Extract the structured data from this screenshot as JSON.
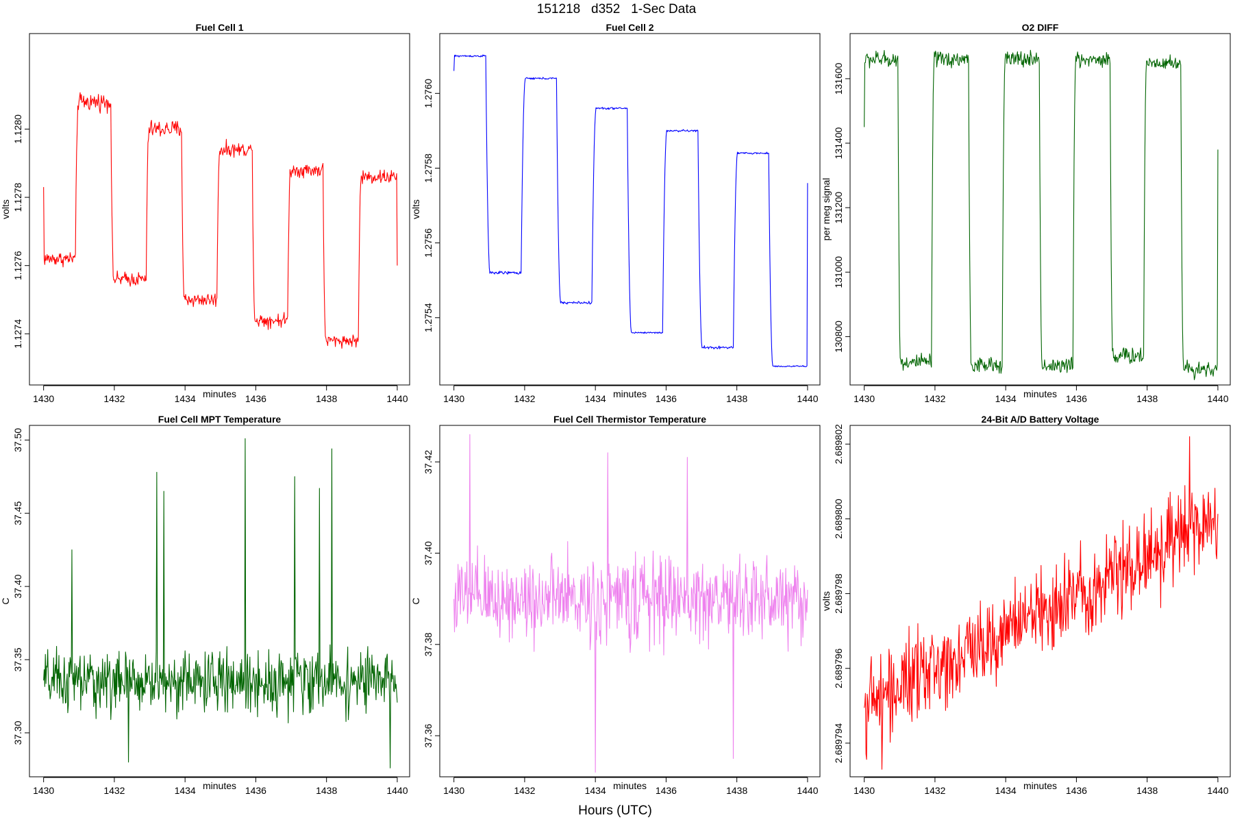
{
  "figure": {
    "title": "151218   d352   1-Sec Data",
    "footer_label": "Hours (UTC)"
  },
  "chart_data": [
    {
      "type": "line",
      "title": "Fuel Cell 1",
      "xlabel": "minutes",
      "ylabel": "volts",
      "color": "#ff0000",
      "xlim": [
        1429.6,
        1440.35
      ],
      "ylim": [
        1.12725,
        1.12828
      ],
      "xticks": [
        "1430",
        "1432",
        "1434",
        "1436",
        "1438",
        "1440"
      ],
      "yticks": [
        "1.1274",
        "1.1276",
        "1.1278",
        "1.1280"
      ],
      "pattern": "square_wave_noisy",
      "series": [
        {
          "name": "Fuel Cell 1",
          "segments": [
            {
              "x0": 1430.0,
              "x1": 1430.9,
              "level": 1.12762,
              "noise": 1.8e-05
            },
            {
              "x0": 1430.9,
              "x1": 1431.9,
              "level": 1.12808,
              "noise": 2.2e-05
            },
            {
              "x0": 1431.9,
              "x1": 1432.9,
              "level": 1.12756,
              "noise": 1.8e-05
            },
            {
              "x0": 1432.9,
              "x1": 1433.9,
              "level": 1.128,
              "noise": 2.2e-05
            },
            {
              "x0": 1433.9,
              "x1": 1434.9,
              "level": 1.1275,
              "noise": 1.8e-05
            },
            {
              "x0": 1434.9,
              "x1": 1435.9,
              "level": 1.12794,
              "noise": 1.8e-05
            },
            {
              "x0": 1435.9,
              "x1": 1436.9,
              "level": 1.12744,
              "noise": 1.8e-05
            },
            {
              "x0": 1436.9,
              "x1": 1437.9,
              "level": 1.12788,
              "noise": 1.8e-05
            },
            {
              "x0": 1437.9,
              "x1": 1438.9,
              "level": 1.12738,
              "noise": 1.5e-05
            },
            {
              "x0": 1438.9,
              "x1": 1440.0,
              "level": 1.12786,
              "noise": 1.8e-05
            }
          ],
          "start_value": 1.12783,
          "end_value": 1.1276
        }
      ]
    },
    {
      "type": "line",
      "title": "Fuel Cell 2",
      "xlabel": "minutes",
      "ylabel": "volts",
      "color": "#0000ff",
      "xlim": [
        1429.6,
        1440.35
      ],
      "ylim": [
        1.27522,
        1.27616
      ],
      "xticks": [
        "1430",
        "1432",
        "1434",
        "1436",
        "1438",
        "1440"
      ],
      "yticks": [
        "1.2754",
        "1.2756",
        "1.2758",
        "1.2760"
      ],
      "pattern": "square_wave_smooth",
      "series": [
        {
          "name": "Fuel Cell 2",
          "segments": [
            {
              "x0": 1430.0,
              "x1": 1430.9,
              "level": 1.2761,
              "noise": 4e-06
            },
            {
              "x0": 1430.9,
              "x1": 1431.9,
              "level": 1.27552,
              "noise": 6e-06
            },
            {
              "x0": 1431.9,
              "x1": 1432.9,
              "level": 1.27604,
              "noise": 4e-06
            },
            {
              "x0": 1432.9,
              "x1": 1433.9,
              "level": 1.27544,
              "noise": 5e-06
            },
            {
              "x0": 1433.9,
              "x1": 1434.9,
              "level": 1.27596,
              "noise": 4e-06
            },
            {
              "x0": 1434.9,
              "x1": 1435.9,
              "level": 1.27536,
              "noise": 3e-06
            },
            {
              "x0": 1435.9,
              "x1": 1436.9,
              "level": 1.2759,
              "noise": 4e-06
            },
            {
              "x0": 1436.9,
              "x1": 1437.9,
              "level": 1.27532,
              "noise": 6e-06
            },
            {
              "x0": 1437.9,
              "x1": 1438.9,
              "level": 1.27584,
              "noise": 4e-06
            },
            {
              "x0": 1438.9,
              "x1": 1440.0,
              "level": 1.27527,
              "noise": 3e-06
            }
          ],
          "start_value": 1.27606,
          "end_value": 1.27576
        }
      ]
    },
    {
      "type": "line",
      "title": "O2 DIFF",
      "xlabel": "minutes",
      "ylabel": "per meg signal",
      "color": "#006400",
      "xlim": [
        1429.6,
        1440.35
      ],
      "ylim": [
        130650,
        131740
      ],
      "xticks": [
        "1430",
        "1432",
        "1434",
        "1436",
        "1438",
        "1440"
      ],
      "yticks": [
        "130800",
        "131000",
        "131200",
        "131400",
        "131600"
      ],
      "pattern": "square_wave_noisy",
      "series": [
        {
          "name": "O2 DIFF",
          "segments": [
            {
              "x0": 1430.0,
              "x1": 1430.95,
              "level": 131660,
              "noise": 22
            },
            {
              "x0": 1430.95,
              "x1": 1431.9,
              "level": 130720,
              "noise": 22
            },
            {
              "x0": 1431.9,
              "x1": 1432.95,
              "level": 131660,
              "noise": 22
            },
            {
              "x0": 1432.95,
              "x1": 1433.9,
              "level": 130710,
              "noise": 22
            },
            {
              "x0": 1433.9,
              "x1": 1434.95,
              "level": 131660,
              "noise": 22
            },
            {
              "x0": 1434.95,
              "x1": 1435.9,
              "level": 130710,
              "noise": 22
            },
            {
              "x0": 1435.9,
              "x1": 1436.95,
              "level": 131660,
              "noise": 22
            },
            {
              "x0": 1436.95,
              "x1": 1437.9,
              "level": 130740,
              "noise": 22
            },
            {
              "x0": 1437.9,
              "x1": 1438.95,
              "level": 131650,
              "noise": 20
            },
            {
              "x0": 1438.95,
              "x1": 1440.0,
              "level": 130700,
              "noise": 22
            }
          ],
          "start_value": 131450,
          "end_value": 131380
        }
      ]
    },
    {
      "type": "line",
      "title": "Fuel Cell MPT Temperature",
      "xlabel": "minutes",
      "ylabel": "C",
      "color": "#006400",
      "xlim": [
        1429.6,
        1440.35
      ],
      "ylim": [
        37.27,
        37.51
      ],
      "xticks": [
        "1430",
        "1432",
        "1434",
        "1436",
        "1438",
        "1440"
      ],
      "yticks": [
        "37.30",
        "37.35",
        "37.40",
        "37.45",
        "37.50"
      ],
      "pattern": "noise",
      "series": [
        {
          "name": "Fuel Cell MPT Temperature",
          "mean": 37.335,
          "noise": 0.018,
          "trend": 0.0,
          "spikes": [
            {
              "x": 1430.8,
              "value": 37.425
            },
            {
              "x": 1433.2,
              "value": 37.478
            },
            {
              "x": 1433.4,
              "value": 37.465
            },
            {
              "x": 1435.7,
              "value": 37.501
            },
            {
              "x": 1437.1,
              "value": 37.475
            },
            {
              "x": 1437.8,
              "value": 37.467
            },
            {
              "x": 1438.15,
              "value": 37.494
            },
            {
              "x": 1432.4,
              "value": 37.28
            },
            {
              "x": 1439.8,
              "value": 37.276
            }
          ]
        }
      ]
    },
    {
      "type": "line",
      "title": "Fuel Cell Thermistor Temperature",
      "xlabel": "minutes",
      "ylabel": "C",
      "color": "#ee82ee",
      "xlim": [
        1429.6,
        1440.35
      ],
      "ylim": [
        37.351,
        37.428
      ],
      "xticks": [
        "1430",
        "1432",
        "1434",
        "1436",
        "1438",
        "1440"
      ],
      "yticks": [
        "37.36",
        "37.38",
        "37.40",
        "37.42"
      ],
      "pattern": "noise",
      "series": [
        {
          "name": "Fuel Cell Thermistor Temperature",
          "mean": 37.39,
          "noise": 0.008,
          "trend": 0.0,
          "spikes": [
            {
              "x": 1430.45,
              "value": 37.426
            },
            {
              "x": 1434.0,
              "value": 37.352
            },
            {
              "x": 1434.35,
              "value": 37.422
            },
            {
              "x": 1437.9,
              "value": 37.355
            },
            {
              "x": 1436.6,
              "value": 37.421
            }
          ]
        }
      ]
    },
    {
      "type": "line",
      "title": "24-Bit A/D Battery Voltage",
      "xlabel": "minutes",
      "ylabel": "volts",
      "color": "#ff0000",
      "xlim": [
        1429.6,
        1440.35
      ],
      "ylim": [
        2.6897931,
        2.6898025
      ],
      "xticks": [
        "1430",
        "1432",
        "1434",
        "1436",
        "1438",
        "1440"
      ],
      "yticks": [
        "2.689794",
        "2.689796",
        "2.689798",
        "2.689800",
        "2.689802"
      ],
      "pattern": "noise",
      "series": [
        {
          "name": "24-Bit A/D Battery Voltage",
          "start_mean": 2.689795,
          "end_mean": 2.6898,
          "noise": 1e-06,
          "spikes": [
            {
              "x": 1439.2,
              "value": 2.6898022
            },
            {
              "x": 1430.5,
              "value": 2.6897933
            }
          ]
        }
      ]
    }
  ]
}
